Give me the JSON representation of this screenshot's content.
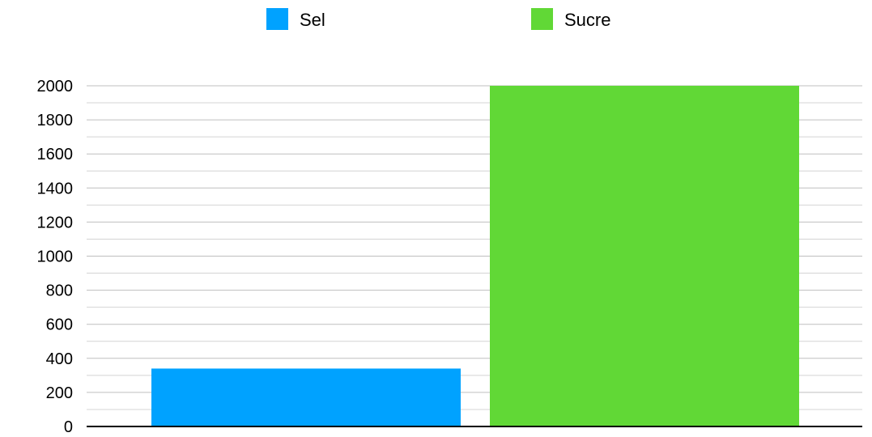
{
  "chart_data": {
    "type": "bar",
    "series": [
      {
        "name": "Sel",
        "value": 340,
        "color": "#00A2FF"
      },
      {
        "name": "Sucre",
        "value": 2000,
        "color": "#61D836"
      }
    ],
    "ylim": [
      0,
      2000
    ],
    "yticks": [
      "0",
      "200",
      "400",
      "600",
      "800",
      "1000",
      "1200",
      "1400",
      "1600",
      "1800",
      "2000"
    ],
    "grid": true,
    "minor_grid": true,
    "legend_position": "top"
  }
}
